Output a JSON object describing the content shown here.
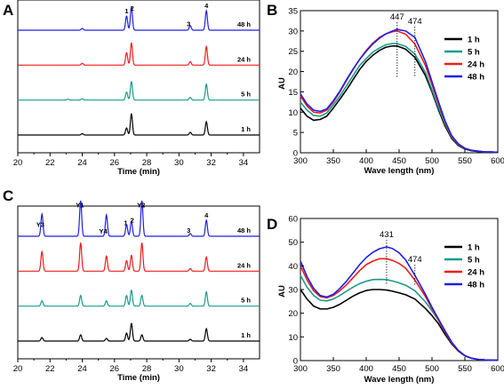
{
  "figure": {
    "panels": [
      {
        "id": "A",
        "letter": "A",
        "xlabel": "Time (min)",
        "xticks": [
          20,
          22,
          24,
          26,
          28,
          30,
          32,
          34
        ],
        "xlim": [
          20,
          35
        ],
        "traces": [
          {
            "label": "1 h",
            "color": "#000000",
            "peaks": [
              [
                26.75,
                8
              ],
              [
                27.05,
                24
              ],
              [
                30.7,
                3
              ],
              [
                31.7,
                15
              ],
              [
                24.0,
                1.5
              ]
            ]
          },
          {
            "label": "5 h",
            "color": "#1a9b8c",
            "peaks": [
              [
                26.75,
                9
              ],
              [
                27.05,
                21
              ],
              [
                30.7,
                3
              ],
              [
                31.7,
                18
              ],
              [
                24.0,
                1.5
              ],
              [
                23.1,
                1
              ]
            ]
          },
          {
            "label": "24 h",
            "color": "#ee1c1c",
            "peaks": [
              [
                26.75,
                14
              ],
              [
                27.05,
                25
              ],
              [
                30.7,
                4
              ],
              [
                31.7,
                21
              ],
              [
                24.0,
                2
              ]
            ]
          },
          {
            "label": "48 h",
            "color": "#1f1fe6",
            "peaks": [
              [
                26.75,
                16
              ],
              [
                27.05,
                26
              ],
              [
                30.7,
                5
              ],
              [
                31.7,
                22
              ],
              [
                24.0,
                2
              ]
            ]
          }
        ],
        "peak_labels": [
          {
            "text": "1",
            "x": 26.75
          },
          {
            "text": "2",
            "x": 27.1
          },
          {
            "text": "3",
            "x": 30.6
          },
          {
            "text": "4",
            "x": 31.7
          }
        ]
      },
      {
        "id": "C",
        "letter": "C",
        "xlabel": "Time (min)",
        "xticks": [
          20,
          22,
          24,
          26,
          28,
          30,
          32,
          34
        ],
        "xlim": [
          20,
          35
        ],
        "traces": [
          {
            "label": "1 h",
            "color": "#000000",
            "peaks": [
              [
                21.5,
                4
              ],
              [
                23.9,
                7
              ],
              [
                25.5,
                3
              ],
              [
                26.75,
                9
              ],
              [
                27.05,
                20
              ],
              [
                27.7,
                7
              ],
              [
                30.7,
                2
              ],
              [
                31.7,
                14
              ]
            ]
          },
          {
            "label": "5 h",
            "color": "#1a9b8c",
            "peaks": [
              [
                21.5,
                6
              ],
              [
                23.9,
                12
              ],
              [
                25.5,
                6
              ],
              [
                26.75,
                12
              ],
              [
                27.05,
                18
              ],
              [
                27.7,
                12
              ],
              [
                30.7,
                3
              ],
              [
                31.7,
                16
              ]
            ]
          },
          {
            "label": "24 h",
            "color": "#ee1c1c",
            "peaks": [
              [
                21.5,
                22
              ],
              [
                23.9,
                32
              ],
              [
                25.5,
                17
              ],
              [
                26.75,
                12
              ],
              [
                27.05,
                18
              ],
              [
                27.7,
                32
              ],
              [
                30.7,
                3
              ],
              [
                31.7,
                16
              ]
            ]
          },
          {
            "label": "48 h",
            "color": "#1f1fe6",
            "peaks": [
              [
                21.5,
                25
              ],
              [
                23.9,
                40
              ],
              [
                25.5,
                24
              ],
              [
                26.75,
                13
              ],
              [
                27.05,
                17
              ],
              [
                27.7,
                40
              ],
              [
                30.7,
                3
              ],
              [
                31.7,
                18
              ]
            ]
          }
        ],
        "peak_labels": [
          {
            "text": "Y3",
            "x": 21.4
          },
          {
            "text": "Y1",
            "x": 23.85
          },
          {
            "text": "Y4",
            "x": 25.3
          },
          {
            "text": "1",
            "x": 26.7
          },
          {
            "text": "2",
            "x": 27.1
          },
          {
            "text": "Y2",
            "x": 27.65
          },
          {
            "text": "3",
            "x": 30.6
          },
          {
            "text": "4",
            "x": 31.7
          }
        ]
      }
    ]
  },
  "chart_data": [
    {
      "type": "line",
      "panel": "B",
      "xlabel": "Wave length (nm)",
      "ylabel": "AU",
      "xlim": [
        300,
        600
      ],
      "ylim": [
        0,
        35
      ],
      "xticks": [
        300,
        350,
        400,
        450,
        500,
        550,
        600
      ],
      "yticks": [
        0,
        5,
        10,
        15,
        20,
        25,
        30,
        35
      ],
      "annotations": [
        {
          "text": "447",
          "x": 447
        },
        {
          "text": "474",
          "x": 474
        }
      ],
      "legend": "right",
      "x": [
        300,
        310,
        320,
        330,
        340,
        350,
        360,
        370,
        380,
        390,
        400,
        410,
        420,
        430,
        440,
        447,
        460,
        474,
        490,
        500,
        510,
        520,
        530,
        540,
        550,
        560,
        570,
        580,
        590,
        600
      ],
      "series": [
        {
          "name": "1 h",
          "color": "#000000",
          "values": [
            11,
            9,
            8,
            8.2,
            9,
            11,
            13.2,
            15.5,
            18,
            20.5,
            22.5,
            24,
            25.2,
            26,
            26.3,
            26.3,
            25.5,
            23.5,
            19,
            15,
            10.5,
            6.5,
            3.5,
            1.8,
            0.9,
            0.5,
            0.3,
            0.2,
            0.1,
            0.1
          ]
        },
        {
          "name": "5 h",
          "color": "#1a9b8c",
          "values": [
            12.5,
            10.5,
            9.2,
            9,
            9.8,
            11.8,
            14,
            16.5,
            19,
            21.5,
            23.2,
            24.8,
            25.8,
            26.6,
            26.9,
            26.9,
            26.2,
            24.3,
            19.8,
            15.5,
            11,
            7,
            3.8,
            2,
            1,
            0.6,
            0.4,
            0.2,
            0.2,
            0.1
          ]
        },
        {
          "name": "24 h",
          "color": "#ee1c1c",
          "values": [
            14,
            11.5,
            10,
            9.8,
            10.5,
            12.5,
            15,
            17.8,
            20.5,
            23,
            25.2,
            27,
            28.4,
            29.3,
            29.8,
            30,
            29.2,
            26.8,
            21.5,
            16.8,
            12,
            7.5,
            4,
            2.1,
            1.1,
            0.6,
            0.4,
            0.2,
            0.2,
            0.1
          ]
        },
        {
          "name": "48 h",
          "color": "#1f1fe6",
          "values": [
            14.5,
            12,
            10.5,
            10.2,
            10.8,
            12.8,
            15.2,
            18,
            20.6,
            23,
            25,
            26.8,
            28.2,
            29.3,
            30,
            30.4,
            30,
            28.4,
            22.5,
            17.5,
            12.5,
            7.8,
            4.2,
            2.2,
            1.1,
            0.6,
            0.4,
            0.2,
            0.2,
            0.1
          ]
        }
      ]
    },
    {
      "type": "line",
      "panel": "D",
      "xlabel": "Wave length (nm)",
      "ylabel": "AU",
      "xlim": [
        300,
        600
      ],
      "ylim": [
        0,
        60
      ],
      "xticks": [
        300,
        350,
        400,
        450,
        500,
        550,
        600
      ],
      "yticks": [
        0,
        10,
        20,
        30,
        40,
        50,
        60
      ],
      "annotations": [
        {
          "text": "431",
          "x": 431
        },
        {
          "text": "474",
          "x": 474
        }
      ],
      "legend": "right",
      "x": [
        300,
        310,
        320,
        330,
        340,
        350,
        360,
        370,
        380,
        390,
        400,
        410,
        420,
        431,
        440,
        450,
        460,
        474,
        490,
        500,
        510,
        520,
        530,
        540,
        550,
        560,
        570,
        580,
        590,
        600
      ],
      "series": [
        {
          "name": "1 h",
          "color": "#000000",
          "values": [
            30,
            26,
            23,
            21.8,
            21.8,
            22.5,
            23.8,
            25.5,
            27.2,
            28.6,
            29.6,
            30,
            30,
            29.8,
            29.3,
            28.6,
            27.8,
            26,
            22,
            19,
            15.5,
            11,
            7,
            4,
            2,
            1,
            0.5,
            0.3,
            0.2,
            0.1
          ]
        },
        {
          "name": "5 h",
          "color": "#1a9b8c",
          "values": [
            36,
            31,
            27.5,
            25.5,
            25.2,
            26,
            27.5,
            29.3,
            31,
            32.5,
            33.5,
            34.2,
            34.3,
            34.2,
            33.6,
            32.8,
            31.8,
            29.5,
            24.8,
            21,
            17,
            12,
            7.5,
            4.2,
            2.1,
            1,
            0.5,
            0.3,
            0.2,
            0.1
          ]
        },
        {
          "name": "24 h",
          "color": "#ee1c1c",
          "values": [
            40,
            34,
            29.5,
            27,
            26.5,
            27.5,
            29.5,
            32,
            35,
            38,
            40.5,
            42,
            43,
            43,
            42.3,
            41,
            39,
            34,
            27,
            22,
            17,
            12,
            7.5,
            4.2,
            2,
            1,
            0.5,
            0.3,
            0.2,
            0.1
          ]
        },
        {
          "name": "48 h",
          "color": "#1f1fe6",
          "values": [
            42,
            35.5,
            30.5,
            27.5,
            26.8,
            28,
            30.5,
            33.5,
            37,
            40.5,
            43.5,
            45.7,
            47.2,
            48,
            47.3,
            45.5,
            42.5,
            36,
            28,
            22.5,
            17.5,
            12.5,
            7.8,
            4.3,
            2.1,
            1,
            0.5,
            0.3,
            0.2,
            0.1
          ]
        }
      ]
    }
  ]
}
